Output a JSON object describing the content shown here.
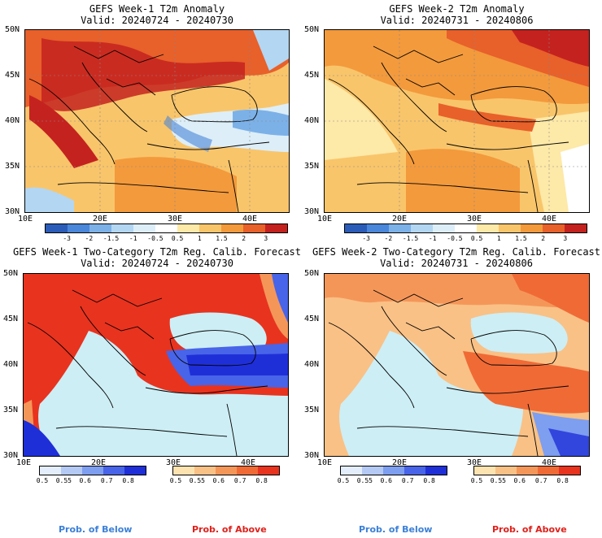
{
  "panels": [
    {
      "line1": "GEFS Week-1 T2m Anomaly",
      "line2": "Valid: 20240724 - 20240730"
    },
    {
      "line1": "GEFS Week-2 T2m Anomaly",
      "line2": "Valid: 20240731 - 20240806"
    },
    {
      "line1": "GEFS Week-1 Two-Category T2m Reg. Calib. Forecast",
      "line2": "Valid: 20240724 - 20240730"
    },
    {
      "line1": "GEFS Week-2 Two-Category T2m Reg. Calib. Forecast",
      "line2": "Valid: 20240731 - 20240806"
    }
  ],
  "lat_labels": [
    "50N",
    "45N",
    "40N",
    "35N",
    "30N"
  ],
  "lon_labels": [
    "10E",
    "20E",
    "30E",
    "40E"
  ],
  "anomaly_colorbar": {
    "labels": [
      "-3",
      "-2",
      "-1.5",
      "-1",
      "-0.5",
      "0.5",
      "1",
      "1.5",
      "2",
      "3"
    ],
    "colors": [
      "#2b5cb8",
      "#4a86d9",
      "#7cb1e8",
      "#b3d6f2",
      "#ddeef8",
      "#ffffff",
      "#fde9a8",
      "#f9c56a",
      "#f39a3c",
      "#e8602a",
      "#c4221f"
    ]
  },
  "prob_below_colorbar": {
    "labels": [
      "0.5",
      "0.55",
      "0.6",
      "0.7",
      "0.8"
    ],
    "colors": [
      "#e3edfb",
      "#b4c9f3",
      "#7e9ef0",
      "#4864e8",
      "#1f2fd8"
    ]
  },
  "prob_above_colorbar": {
    "labels": [
      "0.5",
      "0.55",
      "0.6",
      "0.7",
      "0.8"
    ],
    "colors": [
      "#fde3b0",
      "#f9c186",
      "#f59659",
      "#f06a36",
      "#e8331f"
    ]
  },
  "legend": {
    "below": "Prob. of Below",
    "above": "Prob. of Above",
    "below_color": "#3a7fd8",
    "above_color": "#e0201a"
  }
}
